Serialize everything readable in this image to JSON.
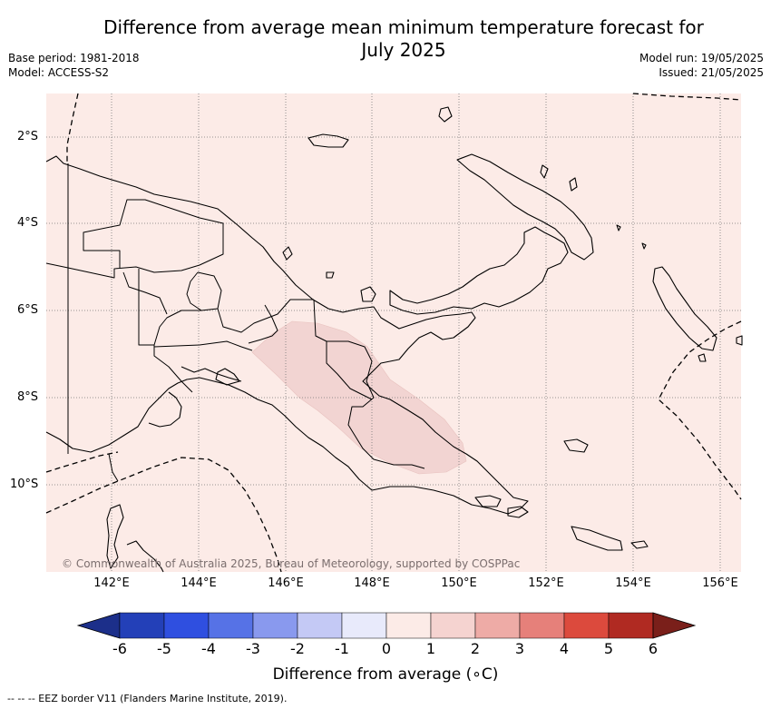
{
  "title": "Difference from average mean minimum temperature forecast for July 2025",
  "title_line1": "Difference from average mean minimum temperature forecast for",
  "title_line2": "July 2025",
  "base_period": "Base period: 1981-2018",
  "model": "Model: ACCESS-S2",
  "model_run": "Model run: 19/05/2025",
  "issued": "Issued: 21/05/2025",
  "copyright": "© Commonwealth of Australia 2025, Bureau of Meteorology, supported by COSPPac",
  "footnote": "-- -- -- EEZ border V11 (Flanders Marine Institute, 2019).",
  "lat_labels": [
    "2°S",
    "4°S",
    "6°S",
    "8°S",
    "10°S"
  ],
  "lon_labels": [
    "142°E",
    "144°E",
    "146°E",
    "148°E",
    "150°E",
    "152°E",
    "154°E",
    "156°E"
  ],
  "colorbar": {
    "label": "Difference from average (°C)",
    "label_text": "Difference from average (",
    "label_unit": "∘C)",
    "ticks": [
      "-6",
      "-5",
      "-4",
      "-3",
      "-2",
      "-1",
      "0",
      "1",
      "2",
      "3",
      "4",
      "5",
      "6"
    ],
    "colors": [
      "#1c2f8a",
      "#2340b8",
      "#2f4fe0",
      "#5672e6",
      "#8999ee",
      "#c4c9f5",
      "#e8eafb",
      "#fcebe7",
      "#f5d3d0",
      "#eeaba6",
      "#e6807a",
      "#dc4a3d",
      "#b02a22",
      "#7a1f1a"
    ]
  },
  "map": {
    "background_anomaly_color": "#fcebe7",
    "warm_patch_color": "#f2d4d2",
    "region": "Papua New Guinea"
  }
}
